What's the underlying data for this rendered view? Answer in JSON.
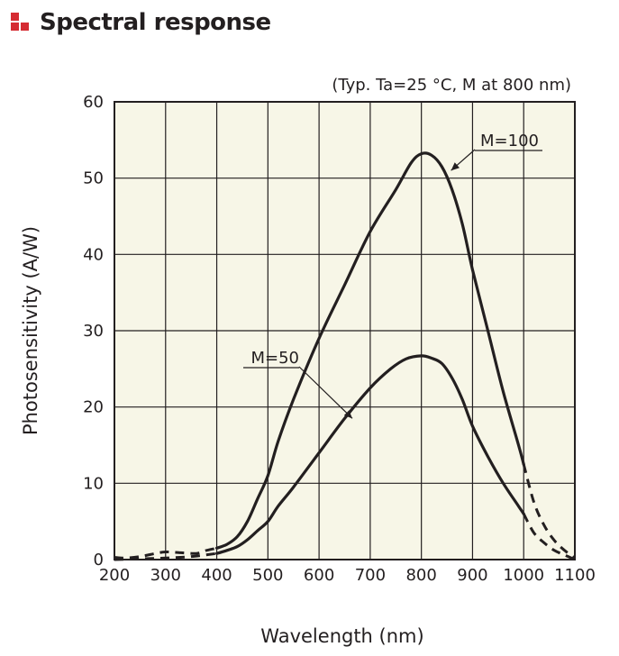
{
  "header": {
    "title": "Spectral response",
    "accent_color": "#d52b32",
    "icon": "red-bullet-icon"
  },
  "chart_data": {
    "type": "line",
    "title": "Spectral response",
    "condition_note": "(Typ. Ta=25 °C, M at 800 nm)",
    "xlabel": "Wavelength (nm)",
    "ylabel": "Photosensitivity (A/W)",
    "xlim": [
      200,
      1100
    ],
    "ylim": [
      0,
      60
    ],
    "xticks": [
      200,
      300,
      400,
      500,
      600,
      700,
      800,
      900,
      1000,
      1100
    ],
    "yticks": [
      0,
      10,
      20,
      30,
      40,
      50,
      60
    ],
    "grid": true,
    "plot_background": "#f7f6e7",
    "series": [
      {
        "name": "M=100",
        "label": "M=100",
        "solid": {
          "x": [
            400,
            420,
            440,
            460,
            480,
            500,
            520,
            550,
            600,
            650,
            700,
            750,
            780,
            800,
            820,
            840,
            860,
            880,
            900,
            930,
            960,
            990,
            1000
          ],
          "y": [
            1.5,
            2.0,
            3.0,
            5.0,
            8.0,
            11.0,
            15.5,
            21.0,
            29.0,
            36.0,
            43.0,
            48.5,
            52.0,
            53.2,
            53.0,
            51.5,
            48.5,
            44.0,
            38.0,
            30.0,
            22.0,
            15.0,
            12.5
          ]
        },
        "dashed": {
          "x": [
            200,
            220,
            250,
            280,
            300,
            330,
            360,
            380,
            400,
            1000,
            1020,
            1040,
            1060,
            1080,
            1100
          ],
          "y": [
            0.3,
            0.2,
            0.4,
            0.8,
            1.0,
            0.9,
            0.8,
            1.2,
            1.5,
            12.5,
            7.5,
            4.5,
            2.5,
            1.2,
            0.2
          ],
          "break_after_index": 8
        }
      },
      {
        "name": "M=50",
        "label": "M=50",
        "solid": {
          "x": [
            400,
            420,
            440,
            460,
            480,
            500,
            520,
            550,
            600,
            650,
            700,
            740,
            770,
            800,
            820,
            840,
            860,
            880,
            900,
            930,
            960,
            990,
            1000
          ],
          "y": [
            0.8,
            1.2,
            1.7,
            2.6,
            3.8,
            5.0,
            7.0,
            9.5,
            14.0,
            18.5,
            22.5,
            25.0,
            26.3,
            26.7,
            26.4,
            25.7,
            23.8,
            21.0,
            17.5,
            13.5,
            10.0,
            7.0,
            6.0
          ]
        },
        "dashed": {
          "x": [
            200,
            250,
            300,
            350,
            400,
            1000,
            1020,
            1040,
            1060,
            1080,
            1100
          ],
          "y": [
            0.0,
            0.1,
            0.2,
            0.4,
            0.8,
            6.0,
            3.5,
            2.2,
            1.2,
            0.6,
            0.0
          ],
          "break_after_index": 4
        }
      }
    ],
    "annotations": [
      {
        "text": "M=100",
        "points_to_series": "M=100",
        "target": [
          858,
          51.0
        ]
      },
      {
        "text": "M=50",
        "points_to_series": "M=50",
        "target": [
          665,
          18.5
        ]
      }
    ]
  }
}
